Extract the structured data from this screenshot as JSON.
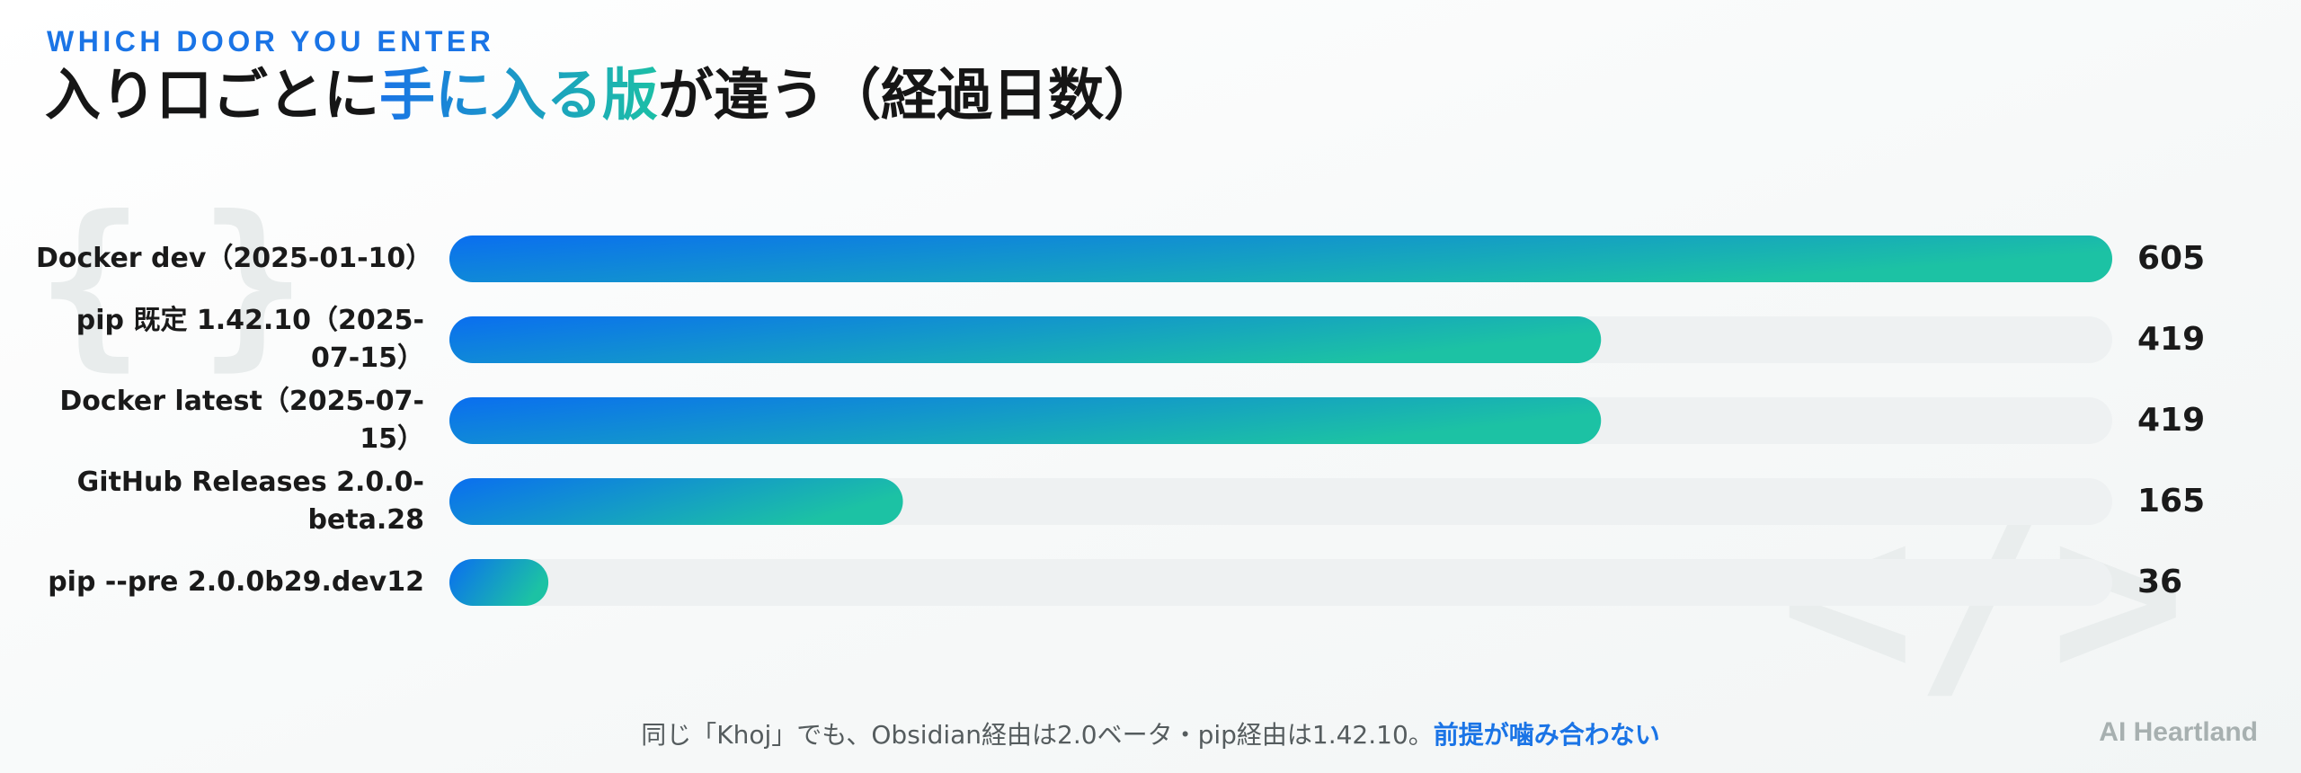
{
  "header": {
    "kicker": "WHICH DOOR YOU ENTER",
    "title_part1": "入り口ごとに",
    "title_highlight": "手に入る版",
    "title_part2": "が違う（経過日数）"
  },
  "chart_data": {
    "type": "bar",
    "orientation": "horizontal",
    "categories": [
      "Docker dev（2025-01-10）",
      "pip 既定 1.42.10（2025-07-15）",
      "Docker latest（2025-07-15）",
      "GitHub Releases 2.0.0-beta.28",
      "pip --pre 2.0.0b29.dev12"
    ],
    "values": [
      605,
      419,
      419,
      165,
      36
    ],
    "xlim": [
      0,
      605
    ],
    "grid": false,
    "data_labels": true,
    "colors": {
      "bar_start": "#0a6ef0",
      "bar_end": "#1cc2a4",
      "track": "#eef1f2"
    }
  },
  "footer": {
    "text": "同じ「Khoj」でも、Obsidian経由は2.0ベータ・pip経由は1.42.10。",
    "emphasis": "前提が噛み合わない"
  },
  "brand": "AI Heartland"
}
